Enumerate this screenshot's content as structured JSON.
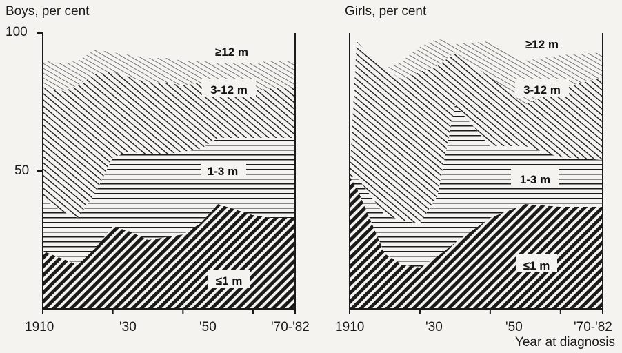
{
  "chart_data": [
    {
      "type": "area",
      "title": "Boys, per cent",
      "xlabel": "Year at diagnosis",
      "ylabel": "per cent",
      "ylim": [
        0,
        100
      ],
      "xlim": [
        1910,
        1982
      ],
      "x_tick_labels": [
        "1910",
        "'30",
        "'50",
        "'70-'82"
      ],
      "y_tick_labels": [
        "100",
        "50"
      ],
      "stacked": true,
      "x": [
        1910,
        1916,
        1920,
        1925,
        1930,
        1935,
        1940,
        1945,
        1950,
        1955,
        1960,
        1965,
        1970,
        1975,
        1982
      ],
      "series": [
        {
          "name": "≤1m",
          "values": [
            21,
            18,
            16,
            22,
            30,
            28,
            25,
            26,
            27,
            31,
            38,
            36,
            34,
            33,
            33
          ]
        },
        {
          "name": "1-3m",
          "values": [
            19,
            17,
            17,
            20,
            25,
            29,
            31,
            30,
            30,
            27,
            24,
            26,
            28,
            29,
            29
          ]
        },
        {
          "name": "3-12m",
          "values": [
            40,
            44,
            48,
            43,
            31,
            27,
            26,
            26,
            24,
            24,
            18,
            17,
            17,
            18,
            18
          ]
        },
        {
          "name": "≥12m",
          "values": [
            10,
            10,
            9,
            9,
            7,
            8,
            9,
            9,
            9,
            8,
            9,
            10,
            10,
            10,
            10
          ]
        }
      ],
      "band_labels": [
        "≥12 m",
        "3-12 m",
        "1-3 m",
        "≤1 m"
      ]
    },
    {
      "type": "area",
      "title": "Girls, per cent",
      "xlabel": "Year at diagnosis",
      "ylabel": "per cent",
      "ylim": [
        0,
        100
      ],
      "xlim": [
        1910,
        1982
      ],
      "x_tick_labels": [
        "1910",
        "'30",
        "'50",
        "'70-'82"
      ],
      "y_tick_labels": [],
      "stacked": true,
      "x": [
        1910,
        1912,
        1920,
        1925,
        1930,
        1935,
        1940,
        1950,
        1960,
        1970,
        1982
      ],
      "series": [
        {
          "name": "≤1m",
          "values": [
            48,
            44,
            20,
            16,
            15,
            19,
            24,
            33,
            38,
            37,
            37
          ]
        },
        {
          "name": "1-3m",
          "values": [
            0,
            4,
            14,
            16,
            16,
            22,
            50,
            26,
            21,
            18,
            17
          ]
        },
        {
          "name": "3-12m",
          "values": [
            0,
            49,
            53,
            51,
            55,
            47,
            19,
            25,
            15,
            25,
            30
          ]
        },
        {
          "name": "≥12m",
          "values": [
            0,
            0,
            0,
            7,
            9,
            10,
            3,
            13,
            16,
            12,
            9
          ]
        }
      ],
      "band_labels": [
        "≥12 m",
        "3-12 m",
        "1-3 m",
        "≤1 m"
      ]
    }
  ],
  "colors": {
    "ink": "#1a1a1a",
    "background": "#f4f3ef"
  }
}
